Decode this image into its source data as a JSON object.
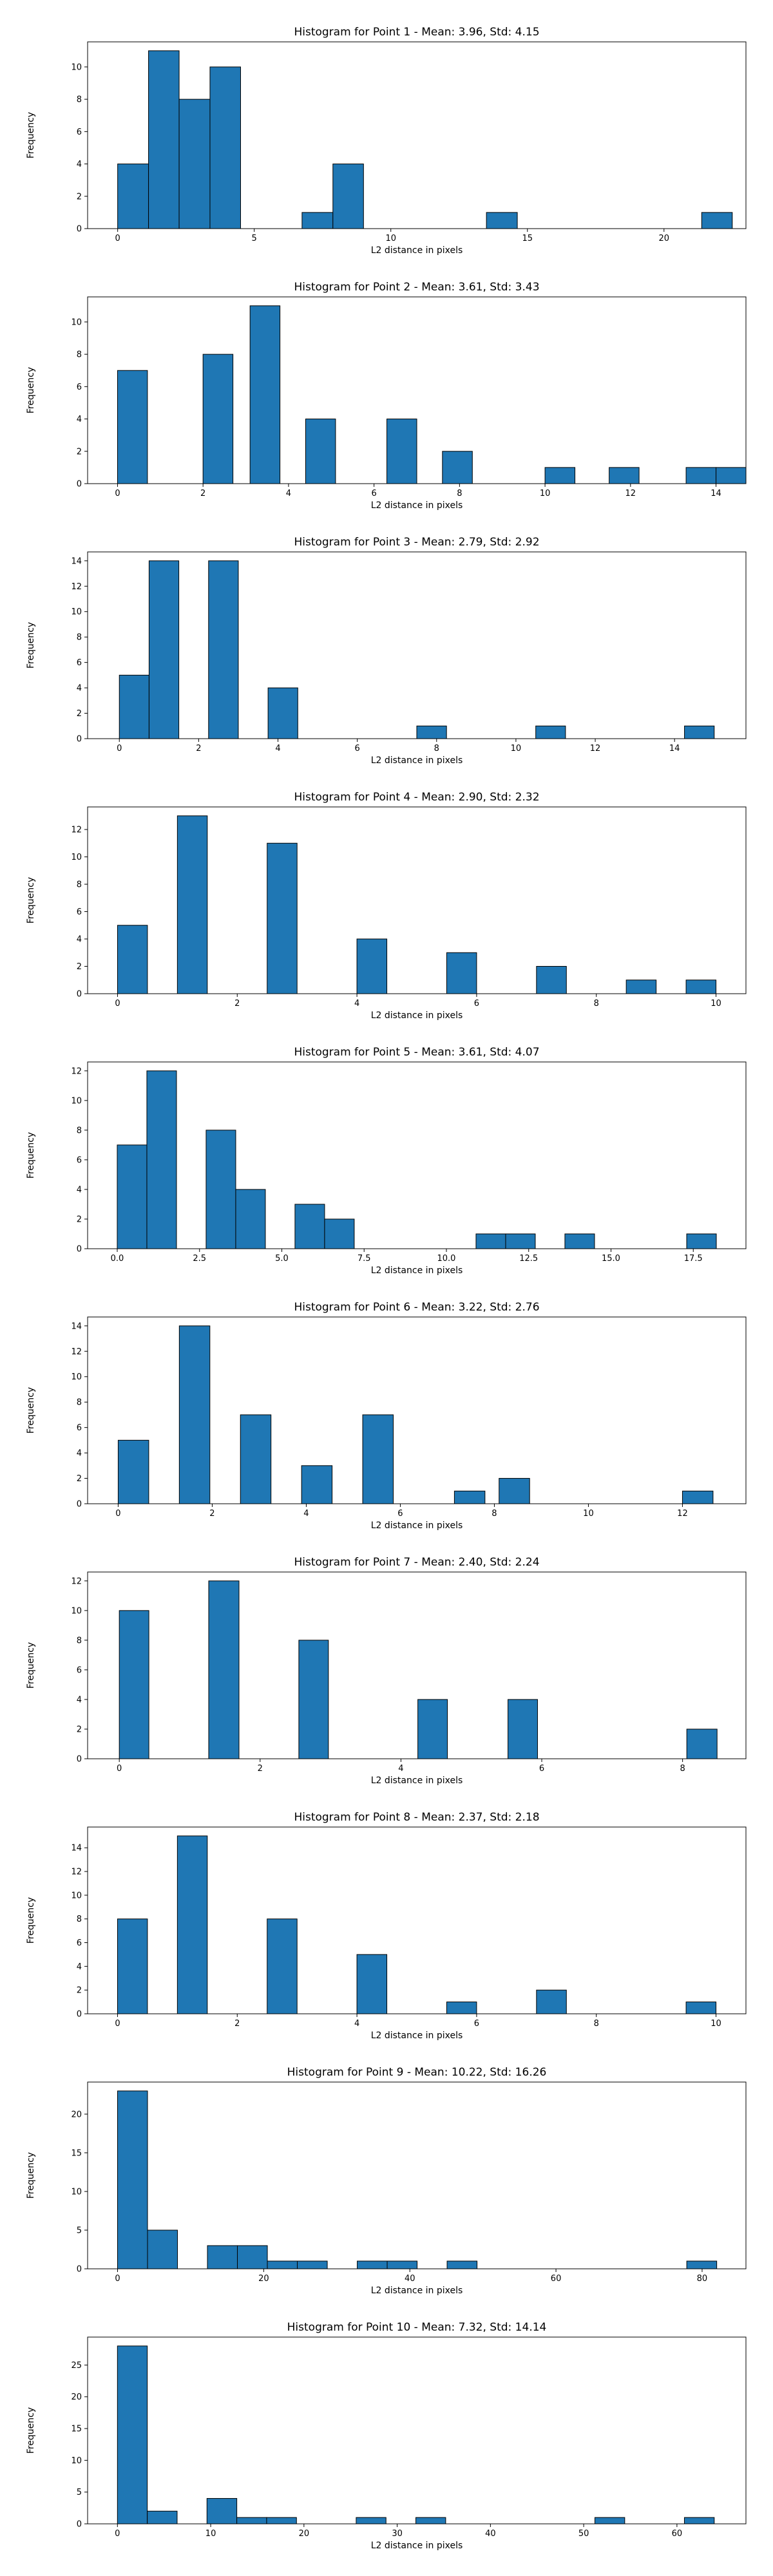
{
  "chart_data": [
    {
      "type": "bar",
      "title": "Histogram for Point 1 - Mean: 3.96, Std: 4.15",
      "xlabel": "L2 distance in pixels",
      "ylabel": "Frequency",
      "xlim": [
        -1.1,
        23.0
      ],
      "ylim": [
        0,
        11.55
      ],
      "xticks": [
        {
          "v": 0,
          "label": "0"
        },
        {
          "v": 5,
          "label": "5"
        },
        {
          "v": 10,
          "label": "10"
        },
        {
          "v": 15,
          "label": "15"
        },
        {
          "v": 20,
          "label": "20"
        }
      ],
      "yticks": [
        {
          "v": 0,
          "label": "0"
        },
        {
          "v": 2,
          "label": "2"
        },
        {
          "v": 4,
          "label": "4"
        },
        {
          "v": 6,
          "label": "6"
        },
        {
          "v": 8,
          "label": "8"
        },
        {
          "v": 10,
          "label": "10"
        }
      ],
      "bins": [
        [
          0.0,
          1.13,
          4
        ],
        [
          1.13,
          2.25,
          11
        ],
        [
          2.25,
          3.38,
          8
        ],
        [
          3.38,
          4.5,
          10
        ],
        [
          6.75,
          7.88,
          1
        ],
        [
          7.88,
          9.0,
          4
        ],
        [
          13.5,
          14.63,
          1
        ],
        [
          21.38,
          22.5,
          1
        ]
      ]
    },
    {
      "type": "bar",
      "title": "Histogram for Point 2 - Mean: 3.61, Std: 3.43",
      "xlabel": "L2 distance in pixels",
      "ylabel": "Frequency",
      "xlim": [
        -0.7,
        14.7
      ],
      "ylim": [
        0,
        11.55
      ],
      "xticks": [
        {
          "v": 0,
          "label": "0"
        },
        {
          "v": 2,
          "label": "2"
        },
        {
          "v": 4,
          "label": "4"
        },
        {
          "v": 6,
          "label": "6"
        },
        {
          "v": 8,
          "label": "8"
        },
        {
          "v": 10,
          "label": "10"
        },
        {
          "v": 12,
          "label": "12"
        },
        {
          "v": 14,
          "label": "14"
        }
      ],
      "yticks": [
        {
          "v": 0,
          "label": "0"
        },
        {
          "v": 2,
          "label": "2"
        },
        {
          "v": 4,
          "label": "4"
        },
        {
          "v": 6,
          "label": "6"
        },
        {
          "v": 8,
          "label": "8"
        },
        {
          "v": 10,
          "label": "10"
        }
      ],
      "bins": [
        [
          0.0,
          0.7,
          7
        ],
        [
          2.0,
          2.7,
          8
        ],
        [
          3.1,
          3.8,
          11
        ],
        [
          4.4,
          5.1,
          4
        ],
        [
          6.3,
          7.0,
          4
        ],
        [
          7.6,
          8.3,
          2
        ],
        [
          10.0,
          10.7,
          1
        ],
        [
          11.5,
          12.2,
          1
        ],
        [
          13.3,
          14.0,
          1
        ],
        [
          14.0,
          14.7,
          1
        ]
      ]
    },
    {
      "type": "bar",
      "title": "Histogram for Point 3 - Mean: 2.79, Std: 2.92",
      "xlabel": "L2 distance in pixels",
      "ylabel": "Frequency",
      "xlim": [
        -0.8,
        15.8
      ],
      "ylim": [
        0,
        14.7
      ],
      "xticks": [
        {
          "v": 0,
          "label": "0"
        },
        {
          "v": 2,
          "label": "2"
        },
        {
          "v": 4,
          "label": "4"
        },
        {
          "v": 6,
          "label": "6"
        },
        {
          "v": 8,
          "label": "8"
        },
        {
          "v": 10,
          "label": "10"
        },
        {
          "v": 12,
          "label": "12"
        },
        {
          "v": 14,
          "label": "14"
        }
      ],
      "yticks": [
        {
          "v": 0,
          "label": "0"
        },
        {
          "v": 2,
          "label": "2"
        },
        {
          "v": 4,
          "label": "4"
        },
        {
          "v": 6,
          "label": "6"
        },
        {
          "v": 8,
          "label": "8"
        },
        {
          "v": 10,
          "label": "10"
        },
        {
          "v": 12,
          "label": "12"
        },
        {
          "v": 14,
          "label": "14"
        }
      ],
      "bins": [
        [
          0.0,
          0.75,
          5
        ],
        [
          0.75,
          1.5,
          14
        ],
        [
          2.25,
          3.0,
          14
        ],
        [
          3.75,
          4.5,
          4
        ],
        [
          7.5,
          8.25,
          1
        ],
        [
          10.5,
          11.25,
          1
        ],
        [
          14.25,
          15.0,
          1
        ]
      ]
    },
    {
      "type": "bar",
      "title": "Histogram for Point 4 - Mean: 2.90, Std: 2.32",
      "xlabel": "L2 distance in pixels",
      "ylabel": "Frequency",
      "xlim": [
        -0.5,
        10.5
      ],
      "ylim": [
        0,
        13.65
      ],
      "xticks": [
        {
          "v": 0,
          "label": "0"
        },
        {
          "v": 2,
          "label": "2"
        },
        {
          "v": 4,
          "label": "4"
        },
        {
          "v": 6,
          "label": "6"
        },
        {
          "v": 8,
          "label": "8"
        },
        {
          "v": 10,
          "label": "10"
        }
      ],
      "yticks": [
        {
          "v": 0,
          "label": "0"
        },
        {
          "v": 2,
          "label": "2"
        },
        {
          "v": 4,
          "label": "4"
        },
        {
          "v": 6,
          "label": "6"
        },
        {
          "v": 8,
          "label": "8"
        },
        {
          "v": 10,
          "label": "10"
        },
        {
          "v": 12,
          "label": "12"
        }
      ],
      "bins": [
        [
          0.0,
          0.5,
          5
        ],
        [
          1.0,
          1.5,
          13
        ],
        [
          2.5,
          3.0,
          11
        ],
        [
          4.0,
          4.5,
          4
        ],
        [
          5.5,
          6.0,
          3
        ],
        [
          7.0,
          7.5,
          2
        ],
        [
          8.5,
          9.0,
          1
        ],
        [
          9.5,
          10.0,
          1
        ]
      ]
    },
    {
      "type": "bar",
      "title": "Histogram for Point 5 - Mean: 3.61, Std: 4.07",
      "xlabel": "L2 distance in pixels",
      "ylabel": "Frequency",
      "xlim": [
        -0.9,
        19.1
      ],
      "ylim": [
        0,
        12.6
      ],
      "xticks": [
        {
          "v": 0,
          "label": "0.0"
        },
        {
          "v": 2.5,
          "label": "2.5"
        },
        {
          "v": 5,
          "label": "5.0"
        },
        {
          "v": 7.5,
          "label": "7.5"
        },
        {
          "v": 10,
          "label": "10.0"
        },
        {
          "v": 12.5,
          "label": "12.5"
        },
        {
          "v": 15,
          "label": "15.0"
        },
        {
          "v": 17.5,
          "label": "17.5"
        }
      ],
      "yticks": [
        {
          "v": 0,
          "label": "0"
        },
        {
          "v": 2,
          "label": "2"
        },
        {
          "v": 4,
          "label": "4"
        },
        {
          "v": 6,
          "label": "6"
        },
        {
          "v": 8,
          "label": "8"
        },
        {
          "v": 10,
          "label": "10"
        },
        {
          "v": 12,
          "label": "12"
        }
      ],
      "bins": [
        [
          0.0,
          0.9,
          7
        ],
        [
          0.9,
          1.8,
          12
        ],
        [
          2.7,
          3.6,
          8
        ],
        [
          3.6,
          4.5,
          4
        ],
        [
          5.4,
          6.3,
          3
        ],
        [
          6.3,
          7.2,
          2
        ],
        [
          10.9,
          11.8,
          1
        ],
        [
          11.8,
          12.7,
          1
        ],
        [
          13.6,
          14.5,
          1
        ],
        [
          17.3,
          18.2,
          1
        ]
      ]
    },
    {
      "type": "bar",
      "title": "Histogram for Point 6 - Mean: 3.22, Std: 2.76",
      "xlabel": "L2 distance in pixels",
      "ylabel": "Frequency",
      "xlim": [
        -0.65,
        13.35
      ],
      "ylim": [
        0,
        14.7
      ],
      "xticks": [
        {
          "v": 0,
          "label": "0"
        },
        {
          "v": 2,
          "label": "2"
        },
        {
          "v": 4,
          "label": "4"
        },
        {
          "v": 6,
          "label": "6"
        },
        {
          "v": 8,
          "label": "8"
        },
        {
          "v": 10,
          "label": "10"
        },
        {
          "v": 12,
          "label": "12"
        }
      ],
      "yticks": [
        {
          "v": 0,
          "label": "0"
        },
        {
          "v": 2,
          "label": "2"
        },
        {
          "v": 4,
          "label": "4"
        },
        {
          "v": 6,
          "label": "6"
        },
        {
          "v": 8,
          "label": "8"
        },
        {
          "v": 10,
          "label": "10"
        },
        {
          "v": 12,
          "label": "12"
        },
        {
          "v": 14,
          "label": "14"
        }
      ],
      "bins": [
        [
          0.0,
          0.65,
          5
        ],
        [
          1.3,
          1.95,
          14
        ],
        [
          2.6,
          3.25,
          7
        ],
        [
          3.9,
          4.55,
          3
        ],
        [
          5.2,
          5.85,
          7
        ],
        [
          7.15,
          7.8,
          1
        ],
        [
          8.1,
          8.75,
          2
        ],
        [
          12.0,
          12.65,
          1
        ]
      ]
    },
    {
      "type": "bar",
      "title": "Histogram for Point 7 - Mean: 2.40, Std: 2.24",
      "xlabel": "L2 distance in pixels",
      "ylabel": "Frequency",
      "xlim": [
        -0.45,
        8.9
      ],
      "ylim": [
        0,
        12.6
      ],
      "xticks": [
        {
          "v": 0,
          "label": "0"
        },
        {
          "v": 2,
          "label": "2"
        },
        {
          "v": 4,
          "label": "4"
        },
        {
          "v": 6,
          "label": "6"
        },
        {
          "v": 8,
          "label": "8"
        }
      ],
      "yticks": [
        {
          "v": 0,
          "label": "0"
        },
        {
          "v": 2,
          "label": "2"
        },
        {
          "v": 4,
          "label": "4"
        },
        {
          "v": 6,
          "label": "6"
        },
        {
          "v": 8,
          "label": "8"
        },
        {
          "v": 10,
          "label": "10"
        },
        {
          "v": 12,
          "label": "12"
        }
      ],
      "bins": [
        [
          0.0,
          0.42,
          10
        ],
        [
          1.27,
          1.7,
          12
        ],
        [
          2.55,
          2.97,
          8
        ],
        [
          4.24,
          4.66,
          4
        ],
        [
          5.52,
          5.94,
          4
        ],
        [
          8.06,
          8.49,
          2
        ]
      ]
    },
    {
      "type": "bar",
      "title": "Histogram for Point 8 - Mean: 2.37, Std: 2.18",
      "xlabel": "L2 distance in pixels",
      "ylabel": "Frequency",
      "xlim": [
        -0.5,
        10.5
      ],
      "ylim": [
        0,
        15.75
      ],
      "xticks": [
        {
          "v": 0,
          "label": "0"
        },
        {
          "v": 2,
          "label": "2"
        },
        {
          "v": 4,
          "label": "4"
        },
        {
          "v": 6,
          "label": "6"
        },
        {
          "v": 8,
          "label": "8"
        },
        {
          "v": 10,
          "label": "10"
        }
      ],
      "yticks": [
        {
          "v": 0,
          "label": "0"
        },
        {
          "v": 2,
          "label": "2"
        },
        {
          "v": 4,
          "label": "4"
        },
        {
          "v": 6,
          "label": "6"
        },
        {
          "v": 8,
          "label": "8"
        },
        {
          "v": 10,
          "label": "10"
        },
        {
          "v": 12,
          "label": "12"
        },
        {
          "v": 14,
          "label": "14"
        }
      ],
      "bins": [
        [
          0.0,
          0.5,
          8
        ],
        [
          1.0,
          1.5,
          15
        ],
        [
          2.5,
          3.0,
          8
        ],
        [
          4.0,
          4.5,
          5
        ],
        [
          5.5,
          6.0,
          1
        ],
        [
          7.0,
          7.5,
          2
        ],
        [
          9.5,
          10.0,
          1
        ]
      ]
    },
    {
      "type": "bar",
      "title": "Histogram for Point 9 - Mean: 10.22, Std: 16.26",
      "xlabel": "L2 distance in pixels",
      "ylabel": "Frequency",
      "xlim": [
        -4.1,
        86.0
      ],
      "ylim": [
        0,
        24.15
      ],
      "xticks": [
        {
          "v": 0,
          "label": "0"
        },
        {
          "v": 20,
          "label": "20"
        },
        {
          "v": 40,
          "label": "40"
        },
        {
          "v": 60,
          "label": "60"
        },
        {
          "v": 80,
          "label": "80"
        }
      ],
      "yticks": [
        {
          "v": 0,
          "label": "0"
        },
        {
          "v": 5,
          "label": "5"
        },
        {
          "v": 10,
          "label": "10"
        },
        {
          "v": 15,
          "label": "15"
        },
        {
          "v": 20,
          "label": "20"
        }
      ],
      "bins": [
        [
          0.0,
          4.1,
          23
        ],
        [
          4.1,
          8.2,
          5
        ],
        [
          12.3,
          16.4,
          3
        ],
        [
          16.4,
          20.5,
          3
        ],
        [
          20.5,
          24.6,
          1
        ],
        [
          24.6,
          28.7,
          1
        ],
        [
          32.8,
          36.9,
          1
        ],
        [
          36.9,
          41.0,
          1
        ],
        [
          45.1,
          49.2,
          1
        ],
        [
          77.9,
          82.0,
          1
        ]
      ]
    },
    {
      "type": "bar",
      "title": "Histogram for Point 10 - Mean: 7.32, Std: 14.14",
      "xlabel": "L2 distance in pixels",
      "ylabel": "Frequency",
      "xlim": [
        -3.2,
        67.4
      ],
      "ylim": [
        0,
        29.4
      ],
      "xticks": [
        {
          "v": 0,
          "label": "0"
        },
        {
          "v": 10,
          "label": "10"
        },
        {
          "v": 20,
          "label": "20"
        },
        {
          "v": 30,
          "label": "30"
        },
        {
          "v": 40,
          "label": "40"
        },
        {
          "v": 50,
          "label": "50"
        },
        {
          "v": 60,
          "label": "60"
        }
      ],
      "yticks": [
        {
          "v": 0,
          "label": "0"
        },
        {
          "v": 5,
          "label": "5"
        },
        {
          "v": 10,
          "label": "10"
        },
        {
          "v": 15,
          "label": "15"
        },
        {
          "v": 20,
          "label": "20"
        },
        {
          "v": 25,
          "label": "25"
        }
      ],
      "bins": [
        [
          0.0,
          3.2,
          28
        ],
        [
          3.2,
          6.4,
          2
        ],
        [
          9.6,
          12.8,
          4
        ],
        [
          12.8,
          16.0,
          1
        ],
        [
          16.0,
          19.2,
          1
        ],
        [
          25.6,
          28.8,
          1
        ],
        [
          32.0,
          35.2,
          1
        ],
        [
          51.2,
          54.4,
          1
        ],
        [
          60.8,
          64.0,
          1
        ]
      ]
    }
  ],
  "style": {
    "bar_fill": "#1f77b4",
    "bar_edge": "#000000",
    "axis_color": "#000000",
    "background": "#ffffff"
  }
}
